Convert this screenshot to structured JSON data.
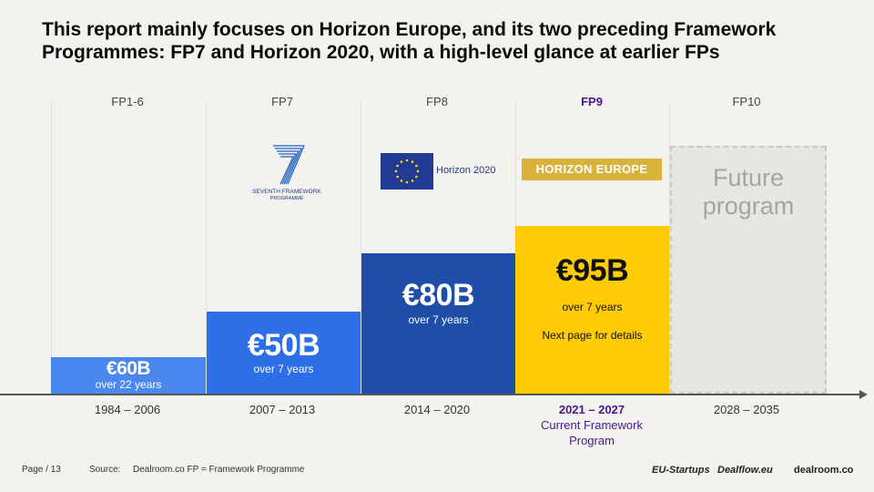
{
  "title": {
    "line1": "This report mainly focuses on Horizon Europe, and its two preceding Framework",
    "line2": "Programmes: FP7 and Horizon 2020, with a high-level glance at earlier FPs"
  },
  "columns": [
    {
      "label": "FP1-6",
      "period": "1984 – 2006"
    },
    {
      "label": "FP7",
      "period": "2007 – 2013"
    },
    {
      "label": "FP8",
      "period": "2014 – 2020"
    },
    {
      "label": "FP9",
      "period": "2021 – 2027",
      "note_line1": "Current Framework",
      "note_line2": "Program"
    },
    {
      "label": "FP10",
      "period": "2028 – 2035"
    }
  ],
  "logos": {
    "fp7_caption_line1": "SEVENTH FRAMEWORK",
    "fp7_caption_line2": "PROGRAMME",
    "h2020": "Horizon 2020",
    "horizon_europe": "HORIZON EUROPE"
  },
  "future": {
    "line1": "Future",
    "line2": "program"
  },
  "chart_data": {
    "type": "bar",
    "categories": [
      "FP1-6",
      "FP7",
      "FP8",
      "FP9"
    ],
    "values": [
      60,
      50,
      80,
      95
    ],
    "value_labels": [
      "€60B",
      "€50B",
      "€80B",
      "€95B"
    ],
    "duration_labels": [
      "over 22 years",
      "over 7 years",
      "over 7 years",
      "over 7 years"
    ],
    "extra_note": "Next page for details",
    "colors": [
      "#4a88f0",
      "#2d6fe6",
      "#1f4ea8",
      "#ffcb05"
    ],
    "ylim": [
      0,
      100
    ]
  },
  "footer": {
    "page": "Page / 13",
    "source_label": "Source:",
    "source_text": "Dealroom.co FP = Framework Programme",
    "brand1": "EU-Startups",
    "brand2": "Dealflow.eu",
    "brand3": "dealroom.co"
  }
}
